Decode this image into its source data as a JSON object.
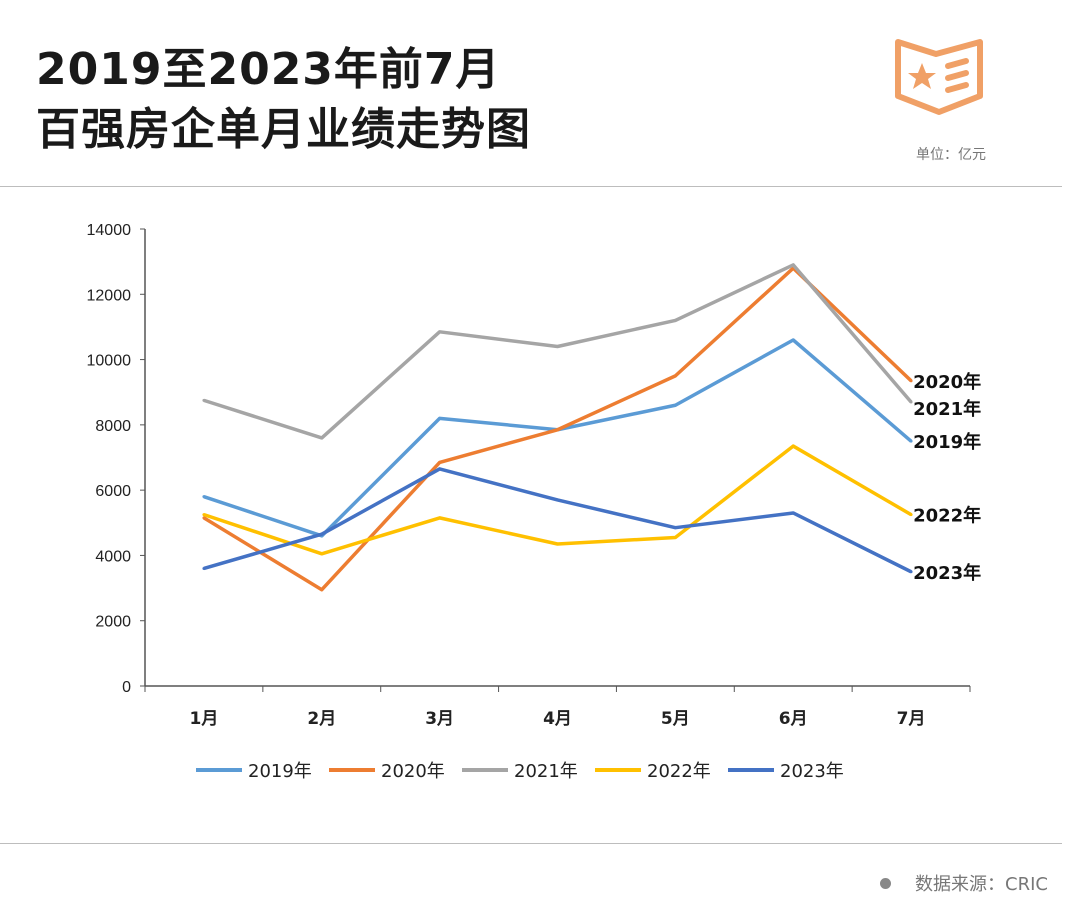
{
  "header": {
    "title_line1": "2019至2023年前7月",
    "title_line2": "百强房企单月业绩走势图",
    "unit": "单位：亿元",
    "icon": "book-star-icon",
    "icon_color": "#f0a066"
  },
  "footer": {
    "source": "数据来源：CRIC"
  },
  "chart_data": {
    "type": "line",
    "title": "",
    "xlabel": "",
    "ylabel": "",
    "categories": [
      "1月",
      "2月",
      "3月",
      "4月",
      "5月",
      "6月",
      "7月"
    ],
    "ylim": [
      0,
      14000
    ],
    "yticks": [
      0,
      2000,
      4000,
      6000,
      8000,
      10000,
      12000,
      14000
    ],
    "grid": false,
    "legend": "bottom",
    "series": [
      {
        "name": "2019年",
        "color": "#5b9bd5",
        "values": [
          5800,
          4600,
          8200,
          7850,
          8600,
          10600,
          7500
        ]
      },
      {
        "name": "2020年",
        "color": "#ed7d31",
        "values": [
          5150,
          2950,
          6850,
          7850,
          9500,
          12800,
          9350
        ]
      },
      {
        "name": "2021年",
        "color": "#a5a5a5",
        "values": [
          8750,
          7600,
          10850,
          10400,
          11200,
          12900,
          8700
        ]
      },
      {
        "name": "2022年",
        "color": "#ffc000",
        "values": [
          5250,
          4050,
          5150,
          4350,
          4550,
          7350,
          5250
        ]
      },
      {
        "name": "2023年",
        "color": "#4472c4",
        "values": [
          3600,
          4650,
          6650,
          5700,
          4850,
          5300,
          3500
        ]
      }
    ]
  }
}
